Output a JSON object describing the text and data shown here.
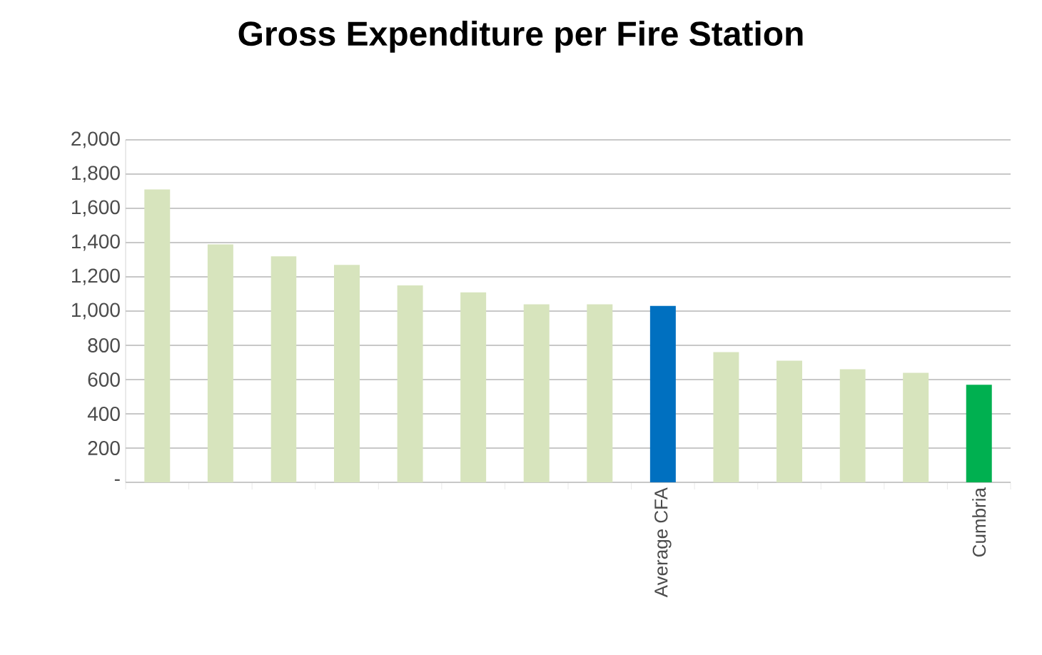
{
  "chart_data": {
    "type": "bar",
    "title": "Gross Expenditure per Fire Station",
    "categories": [
      null,
      null,
      null,
      null,
      null,
      null,
      null,
      null,
      "Average CFA",
      null,
      null,
      null,
      null,
      "Cumbria"
    ],
    "values": [
      1710,
      1390,
      1320,
      1270,
      1150,
      1110,
      1040,
      1040,
      1030,
      760,
      710,
      660,
      640,
      570
    ],
    "colors": [
      "#d7e4bd",
      "#d7e4bd",
      "#d7e4bd",
      "#d7e4bd",
      "#d7e4bd",
      "#d7e4bd",
      "#d7e4bd",
      "#d7e4bd",
      "#0070c0",
      "#d7e4bd",
      "#d7e4bd",
      "#d7e4bd",
      "#d7e4bd",
      "#00b050"
    ],
    "ylim": [
      0,
      2000
    ],
    "yticks": [
      {
        "value": 0,
        "label": "-"
      },
      {
        "value": 200,
        "label": "200"
      },
      {
        "value": 400,
        "label": "400"
      },
      {
        "value": 600,
        "label": "600"
      },
      {
        "value": 800,
        "label": "800"
      },
      {
        "value": 1000,
        "label": "1,000"
      },
      {
        "value": 1200,
        "label": "1,200"
      },
      {
        "value": 1400,
        "label": "1,400"
      },
      {
        "value": 1600,
        "label": "1,600"
      },
      {
        "value": 1800,
        "label": "1,800"
      },
      {
        "value": 2000,
        "label": "2,000"
      }
    ],
    "grid": "y"
  }
}
